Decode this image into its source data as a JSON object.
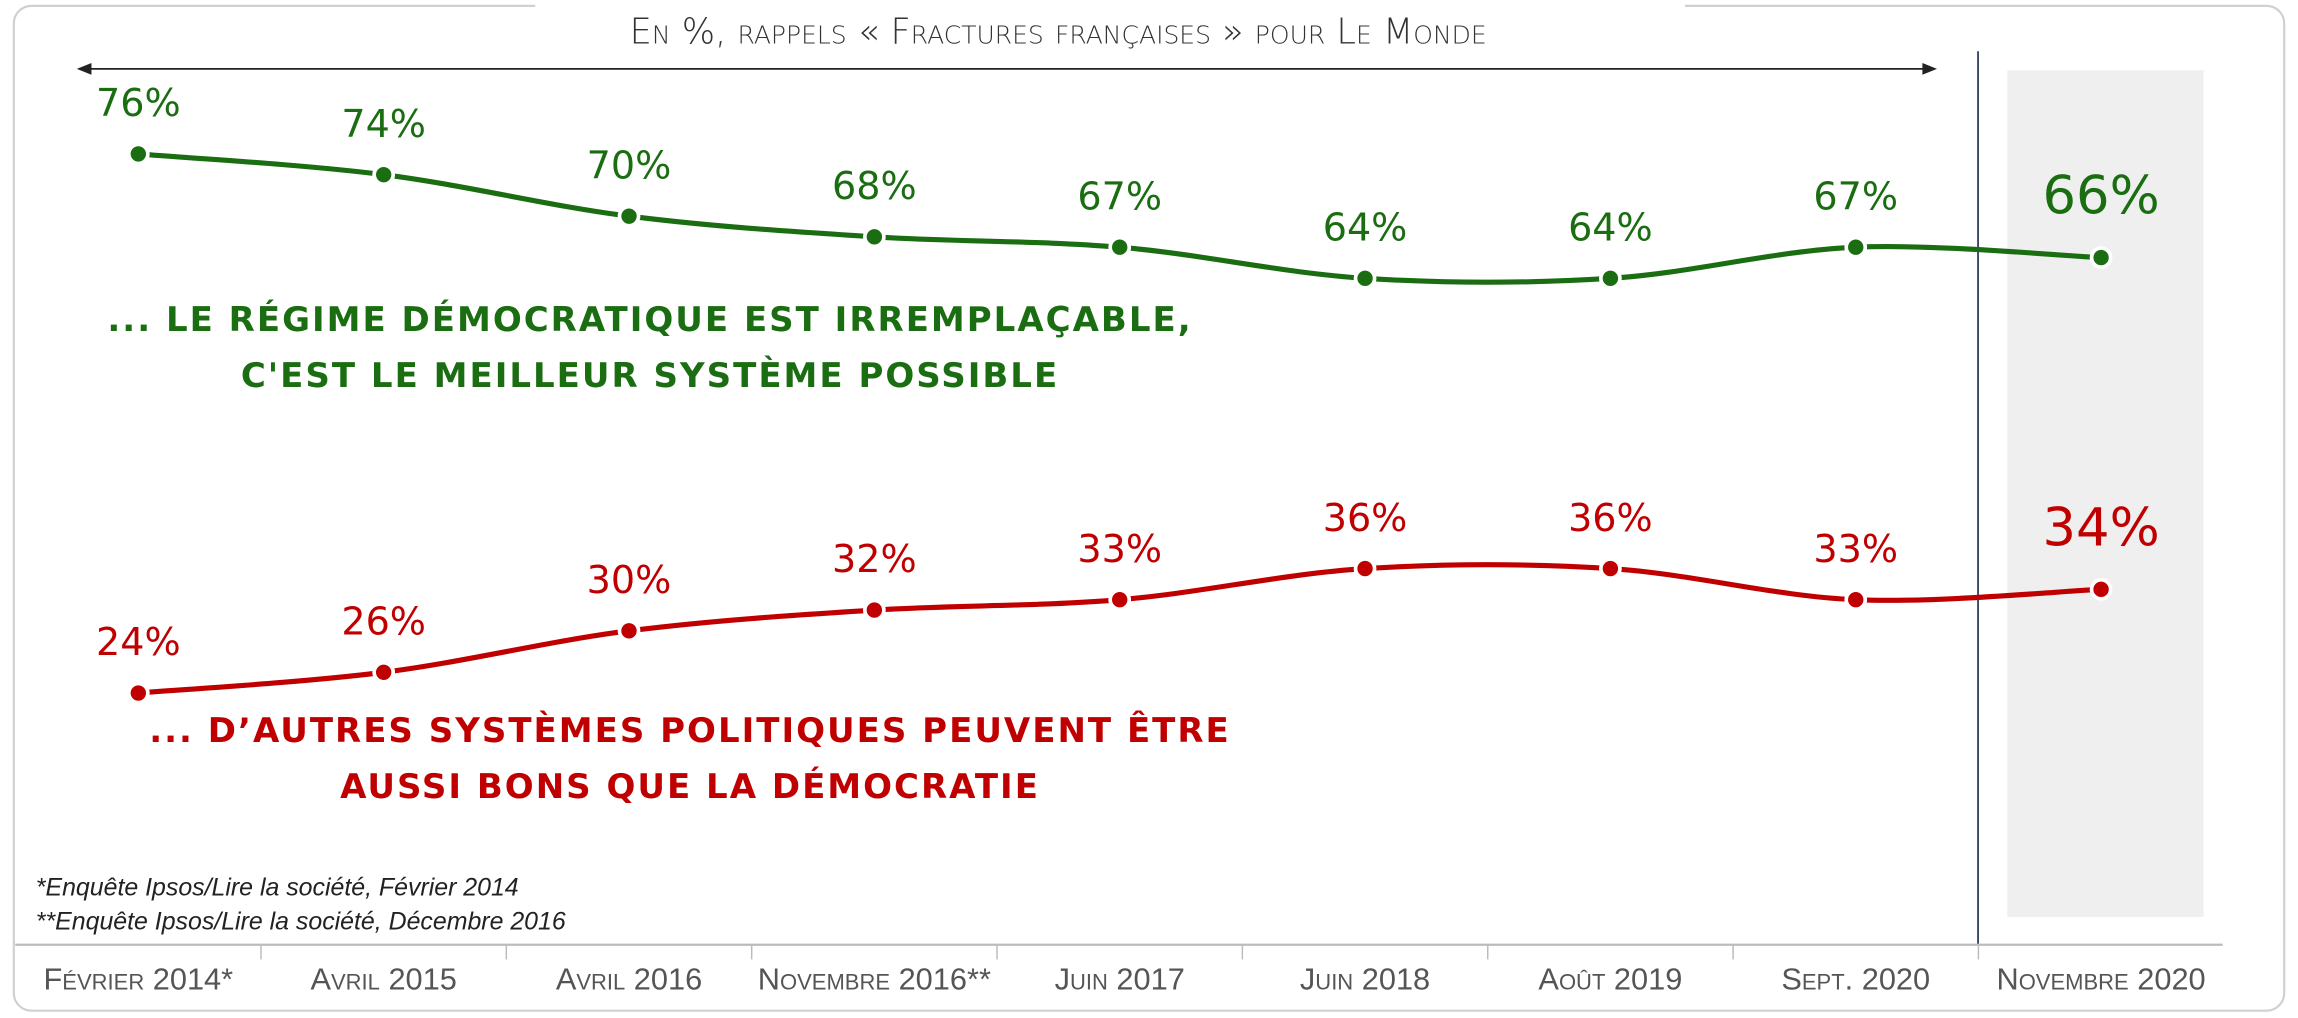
{
  "chart_data": {
    "type": "line",
    "title": "En %, rappels « Fractures françaises » pour Le Monde",
    "categories": [
      "Février 2014*",
      "Avril 2015",
      "Avril 2016",
      "Novembre 2016**",
      "Juin 2017",
      "Juin 2018",
      "Août 2019",
      "Sept. 2020",
      "Novembre 2020"
    ],
    "series": [
      {
        "name": "... LE RÉGIME DÉMOCRATIQUE EST IRREMPLAÇABLE,\nC'EST LE MEILLEUR SYSTÈME POSSIBLE",
        "color": "#1b6d12",
        "values": [
          76,
          74,
          70,
          68,
          67,
          64,
          64,
          67,
          66
        ],
        "value_labels": [
          "76%",
          "74%",
          "70%",
          "68%",
          "67%",
          "64%",
          "64%",
          "67%",
          "66%"
        ]
      },
      {
        "name": "... D’AUTRES SYSTÈMES POLITIQUES PEUVENT ÊTRE\nAUSSI BONS QUE LA DÉMOCRATIE",
        "color": "#c00000",
        "values": [
          24,
          26,
          30,
          32,
          33,
          36,
          36,
          33,
          34
        ],
        "value_labels": [
          "24%",
          "26%",
          "30%",
          "32%",
          "33%",
          "36%",
          "36%",
          "33%",
          "34%"
        ]
      }
    ],
    "ylim": [
      0,
      90
    ],
    "annotations": [
      "*Enquête Ipsos/Lire la société, Février 2014",
      "**Enquête Ipsos/Lire la société, Décembre 2016"
    ]
  }
}
